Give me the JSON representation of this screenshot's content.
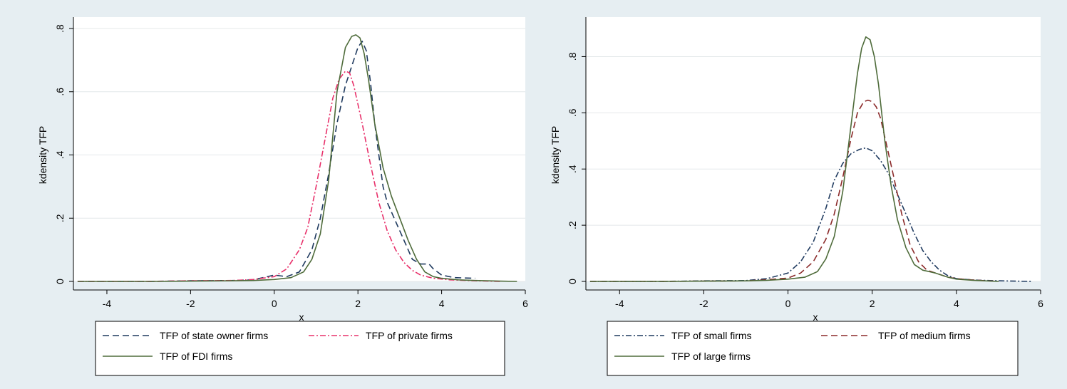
{
  "chart_data": [
    {
      "type": "line",
      "xlabel": "x",
      "ylabel": "kdensity TFP",
      "xlim": [
        -4.8,
        6.0
      ],
      "ylim": [
        0,
        0.8
      ],
      "xticks": [
        -4,
        -2,
        0,
        2,
        4,
        6
      ],
      "xtick_labels": [
        "-4",
        "-2",
        "0",
        "2",
        "4",
        "6"
      ],
      "yticks": [
        0,
        0.2,
        0.4,
        0.6,
        0.8
      ],
      "ytick_labels": [
        "0",
        ".2",
        ".4",
        ".6",
        ".8"
      ],
      "grid": true,
      "legend_position": "bottom",
      "series": [
        {
          "name": "TFP of state owner firms",
          "color": "#1f3a5f",
          "dash": "dash",
          "x": [
            -4.7,
            -3,
            -2,
            -1,
            -0.5,
            0,
            0.3,
            0.6,
            0.9,
            1.1,
            1.3,
            1.5,
            1.7,
            1.9,
            2.0,
            2.1,
            2.2,
            2.3,
            2.4,
            2.5,
            2.6,
            2.7,
            2.9,
            3.1,
            3.3,
            3.5,
            3.7,
            3.8,
            4.0,
            4.3,
            4.8
          ],
          "y": [
            0,
            0,
            0.002,
            0.003,
            0.005,
            0.02,
            0.015,
            0.03,
            0.1,
            0.2,
            0.34,
            0.5,
            0.62,
            0.7,
            0.74,
            0.76,
            0.73,
            0.63,
            0.5,
            0.4,
            0.3,
            0.25,
            0.19,
            0.13,
            0.07,
            0.055,
            0.055,
            0.04,
            0.02,
            0.012,
            0.01
          ]
        },
        {
          "name": "TFP of private firms",
          "color": "#e8306a",
          "dash": "dashdot",
          "x": [
            -4.7,
            -3,
            -2,
            -1,
            -0.5,
            0,
            0.3,
            0.6,
            0.8,
            1.0,
            1.2,
            1.4,
            1.55,
            1.7,
            1.8,
            1.9,
            2.0,
            2.1,
            2.3,
            2.5,
            2.7,
            2.9,
            3.1,
            3.3,
            3.5,
            3.8,
            4.2,
            4.8,
            5.4
          ],
          "y": [
            0,
            0,
            0.002,
            0.003,
            0.006,
            0.015,
            0.04,
            0.1,
            0.17,
            0.3,
            0.44,
            0.58,
            0.64,
            0.665,
            0.66,
            0.62,
            0.56,
            0.5,
            0.37,
            0.25,
            0.16,
            0.1,
            0.06,
            0.035,
            0.02,
            0.01,
            0.005,
            0.002,
            0
          ]
        },
        {
          "name": "TFP of FDI firms",
          "color": "#4e6b3a",
          "dash": "solid",
          "x": [
            -4.7,
            -3,
            -2,
            -1,
            -0.5,
            0,
            0.4,
            0.7,
            0.9,
            1.1,
            1.3,
            1.5,
            1.7,
            1.85,
            1.95,
            2.05,
            2.15,
            2.25,
            2.4,
            2.6,
            2.8,
            3.0,
            3.2,
            3.4,
            3.6,
            3.8,
            4.0,
            4.4,
            4.8,
            5.4,
            5.8
          ],
          "y": [
            0,
            0,
            0.001,
            0.002,
            0.003,
            0.006,
            0.012,
            0.03,
            0.07,
            0.15,
            0.32,
            0.6,
            0.74,
            0.775,
            0.78,
            0.77,
            0.72,
            0.64,
            0.5,
            0.36,
            0.27,
            0.2,
            0.13,
            0.07,
            0.03,
            0.015,
            0.01,
            0.005,
            0.003,
            0.001,
            0
          ]
        }
      ]
    },
    {
      "type": "line",
      "xlabel": "x",
      "ylabel": "kdensity TFP",
      "xlim": [
        -4.8,
        6.0
      ],
      "ylim": [
        0,
        0.9
      ],
      "xticks": [
        -4,
        -2,
        0,
        2,
        4,
        6
      ],
      "xtick_labels": [
        "-4",
        "-2",
        "0",
        "2",
        "4",
        "6"
      ],
      "yticks": [
        0,
        0.2,
        0.4,
        0.6,
        0.8
      ],
      "ytick_labels": [
        "0",
        ".2",
        ".4",
        ".6",
        ".8"
      ],
      "grid": true,
      "legend_position": "bottom",
      "series": [
        {
          "name": "TFP of small firms",
          "color": "#1f3a5f",
          "dash": "dashdot",
          "x": [
            -4.7,
            -3,
            -2,
            -1,
            -0.5,
            0,
            0.3,
            0.6,
            0.9,
            1.1,
            1.3,
            1.5,
            1.7,
            1.85,
            2.0,
            2.2,
            2.4,
            2.6,
            2.8,
            3.0,
            3.2,
            3.4,
            3.6,
            3.8,
            4.0,
            4.4,
            4.8,
            5.4,
            5.8
          ],
          "y": [
            0,
            0,
            0.002,
            0.003,
            0.01,
            0.03,
            0.07,
            0.14,
            0.26,
            0.36,
            0.42,
            0.455,
            0.47,
            0.475,
            0.465,
            0.43,
            0.38,
            0.31,
            0.24,
            0.17,
            0.11,
            0.07,
            0.04,
            0.02,
            0.01,
            0.005,
            0.003,
            0.001,
            0
          ]
        },
        {
          "name": "TFP of medium firms",
          "color": "#8b2a2a",
          "dash": "dash",
          "x": [
            -4.7,
            -3,
            -2,
            -1,
            -0.5,
            0,
            0.3,
            0.6,
            0.9,
            1.1,
            1.3,
            1.5,
            1.65,
            1.8,
            1.9,
            2.0,
            2.1,
            2.2,
            2.35,
            2.5,
            2.7,
            2.9,
            3.1,
            3.3,
            3.5,
            3.8,
            4.0,
            4.4,
            5.0
          ],
          "y": [
            0,
            0,
            0.001,
            0.002,
            0.006,
            0.012,
            0.03,
            0.07,
            0.15,
            0.24,
            0.37,
            0.51,
            0.6,
            0.64,
            0.645,
            0.64,
            0.62,
            0.58,
            0.48,
            0.38,
            0.24,
            0.13,
            0.07,
            0.04,
            0.03,
            0.015,
            0.01,
            0.005,
            0
          ]
        },
        {
          "name": "TFP of large firms",
          "color": "#4e6b3a",
          "dash": "solid",
          "x": [
            -4.7,
            -3,
            -2,
            -1,
            -0.5,
            0,
            0.4,
            0.7,
            0.9,
            1.1,
            1.3,
            1.5,
            1.65,
            1.75,
            1.85,
            1.95,
            2.05,
            2.15,
            2.3,
            2.45,
            2.6,
            2.8,
            3.0,
            3.2,
            3.5,
            3.8,
            4.0,
            4.4,
            5.0
          ],
          "y": [
            0,
            0,
            0.001,
            0.002,
            0.004,
            0.008,
            0.015,
            0.035,
            0.08,
            0.16,
            0.32,
            0.56,
            0.74,
            0.83,
            0.87,
            0.86,
            0.8,
            0.7,
            0.5,
            0.34,
            0.22,
            0.12,
            0.06,
            0.04,
            0.03,
            0.015,
            0.008,
            0.004,
            0
          ]
        }
      ]
    }
  ]
}
